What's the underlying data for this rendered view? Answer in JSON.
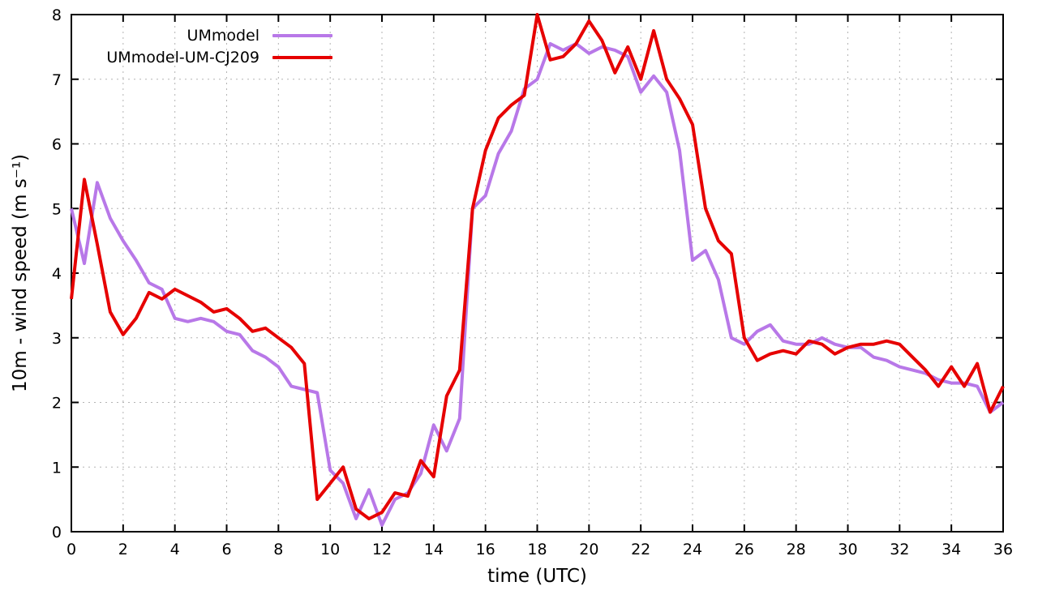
{
  "chart_data": {
    "type": "line",
    "title": "",
    "xlabel": "time (UTC)",
    "ylabel": "10m - wind speed  (m s⁻¹)",
    "xlim": [
      0,
      36
    ],
    "ylim": [
      0,
      8
    ],
    "xticks": [
      0,
      2,
      4,
      6,
      8,
      10,
      12,
      14,
      16,
      18,
      20,
      22,
      24,
      26,
      28,
      30,
      32,
      34,
      36
    ],
    "yticks": [
      0,
      1,
      2,
      3,
      4,
      5,
      6,
      7,
      8
    ],
    "grid": true,
    "legend_position": "top-left",
    "x": [
      0,
      0.5,
      1,
      1.5,
      2,
      2.5,
      3,
      3.5,
      4,
      4.5,
      5,
      5.5,
      6,
      6.5,
      7,
      7.5,
      8,
      8.5,
      9,
      9.5,
      10,
      10.5,
      11,
      11.5,
      12,
      12.5,
      13,
      13.5,
      14,
      14.5,
      15,
      15.5,
      16,
      16.5,
      17,
      17.5,
      18,
      18.5,
      19,
      19.5,
      20,
      20.5,
      21,
      21.5,
      22,
      22.5,
      23,
      23.5,
      24,
      24.5,
      25,
      25.5,
      26,
      26.5,
      27,
      27.5,
      28,
      28.5,
      29,
      29.5,
      30,
      30.5,
      31,
      31.5,
      32,
      32.5,
      33,
      33.5,
      34,
      34.5,
      35,
      35.5,
      36
    ],
    "series": [
      {
        "name": "UMmodel",
        "color": "#b878e8",
        "line_width": 4,
        "values": [
          5.0,
          4.15,
          5.4,
          4.85,
          4.5,
          4.2,
          3.85,
          3.75,
          3.3,
          3.25,
          3.3,
          3.25,
          3.1,
          3.05,
          2.8,
          2.7,
          2.55,
          2.25,
          2.2,
          2.15,
          0.95,
          0.75,
          0.2,
          0.65,
          0.1,
          0.5,
          0.6,
          0.9,
          1.65,
          1.25,
          1.75,
          5.0,
          5.2,
          5.85,
          6.2,
          6.85,
          7.0,
          7.55,
          7.45,
          7.55,
          7.4,
          7.5,
          7.45,
          7.35,
          6.8,
          7.05,
          6.8,
          5.9,
          4.2,
          4.35,
          3.9,
          3.0,
          2.9,
          3.1,
          3.2,
          2.95,
          2.9,
          2.9,
          3.0,
          2.9,
          2.85,
          2.85,
          2.7,
          2.65,
          2.55,
          2.5,
          2.45,
          2.35,
          2.3,
          2.3,
          2.25,
          1.85,
          2.0
        ]
      },
      {
        "name": "UMmodel-UM-CJ209",
        "color": "#e60000",
        "line_width": 4,
        "values": [
          3.6,
          5.45,
          4.45,
          3.4,
          3.05,
          3.3,
          3.7,
          3.6,
          3.75,
          3.65,
          3.55,
          3.4,
          3.45,
          3.3,
          3.1,
          3.15,
          3.0,
          2.85,
          2.6,
          0.5,
          0.75,
          1.0,
          0.35,
          0.2,
          0.3,
          0.6,
          0.55,
          1.1,
          0.85,
          2.1,
          2.5,
          5.0,
          5.9,
          6.4,
          6.6,
          6.75,
          8.0,
          7.3,
          7.35,
          7.55,
          7.9,
          7.6,
          7.1,
          7.5,
          7.0,
          7.75,
          7.0,
          6.7,
          6.3,
          5.0,
          4.5,
          4.3,
          3.0,
          2.65,
          2.75,
          2.8,
          2.75,
          2.95,
          2.9,
          2.75,
          2.85,
          2.9,
          2.9,
          2.95,
          2.9,
          2.7,
          2.5,
          2.25,
          2.55,
          2.25,
          2.6,
          1.85,
          2.25
        ]
      }
    ]
  },
  "colors": {
    "background": "#ffffff",
    "axis": "#000000",
    "grid": "#b3b3b3",
    "text": "#000000"
  }
}
